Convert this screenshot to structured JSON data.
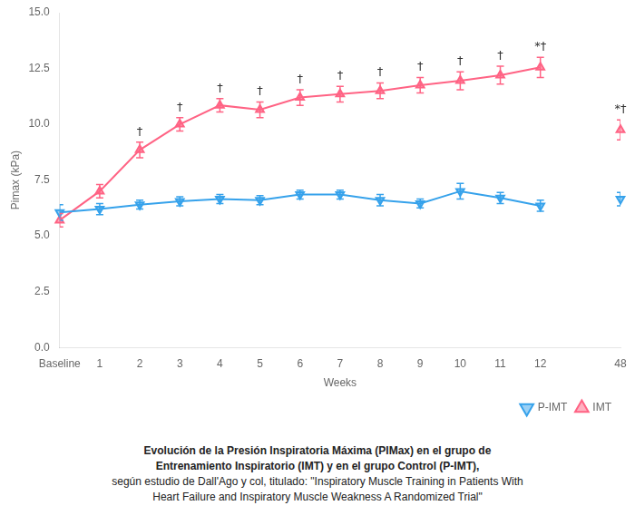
{
  "chart_data": {
    "type": "line",
    "xlabel": "Weeks",
    "ylabel": "Pimax (kPa)",
    "categories": [
      "Baseline",
      "1",
      "2",
      "3",
      "4",
      "5",
      "6",
      "7",
      "8",
      "9",
      "10",
      "11",
      "12",
      null,
      "48"
    ],
    "series": [
      {
        "name": "P-IMT",
        "marker": "triangle_down",
        "values": [
          6.05,
          6.2,
          6.4,
          6.55,
          6.65,
          6.6,
          6.85,
          6.85,
          6.6,
          6.45,
          7.0,
          6.7,
          6.35,
          null,
          6.65
        ],
        "errors": [
          0.35,
          0.25,
          0.2,
          0.2,
          0.2,
          0.2,
          0.2,
          0.2,
          0.25,
          0.2,
          0.35,
          0.25,
          0.25,
          null,
          0.3
        ]
      },
      {
        "name": "IMT",
        "marker": "triangle_up",
        "values": [
          5.7,
          7.0,
          8.85,
          10.0,
          10.85,
          10.65,
          11.2,
          11.35,
          11.5,
          11.75,
          11.95,
          12.2,
          12.55,
          null,
          9.75
        ],
        "errors": [
          0.3,
          0.3,
          0.35,
          0.3,
          0.3,
          0.35,
          0.35,
          0.35,
          0.35,
          0.35,
          0.4,
          0.4,
          0.45,
          null,
          0.45
        ]
      }
    ],
    "annotations": [
      {
        "category": "2",
        "series": "IMT",
        "text": "†"
      },
      {
        "category": "3",
        "series": "IMT",
        "text": "†"
      },
      {
        "category": "4",
        "series": "IMT",
        "text": "†"
      },
      {
        "category": "5",
        "series": "IMT",
        "text": "†"
      },
      {
        "category": "6",
        "series": "IMT",
        "text": "†"
      },
      {
        "category": "7",
        "series": "IMT",
        "text": "†"
      },
      {
        "category": "8",
        "series": "IMT",
        "text": "†"
      },
      {
        "category": "9",
        "series": "IMT",
        "text": "†"
      },
      {
        "category": "10",
        "series": "IMT",
        "text": "†"
      },
      {
        "category": "11",
        "series": "IMT",
        "text": "†"
      },
      {
        "category": "12",
        "series": "IMT",
        "text": "*†"
      },
      {
        "category": "48",
        "series": "IMT",
        "text": "*†"
      }
    ],
    "ylim": [
      0.0,
      15.0
    ],
    "yticks": [
      {
        "value": 0.0,
        "label": "0.0"
      },
      2.5,
      {
        "value": 5.0,
        "label": "5.0"
      },
      7.5,
      {
        "value": 10.0,
        "label": "10.0"
      },
      12.5,
      {
        "value": 15.0,
        "label": "15.0"
      }
    ],
    "grid": false,
    "legend": "lower right",
    "caption": [
      "Evolución de la Presión Inspiratoria Máxima (PIMax) en el grupo de",
      "Entrenamiento Inspiratorio (IMT) y en el grupo Control (P-IMT),",
      "según estudio de Dall'Ago y col, titulado: \"Inspiratory Muscle Training in Patients With",
      "Heart Failure and Inspiratory Muscle Weakness A Randomized Trial\""
    ]
  }
}
